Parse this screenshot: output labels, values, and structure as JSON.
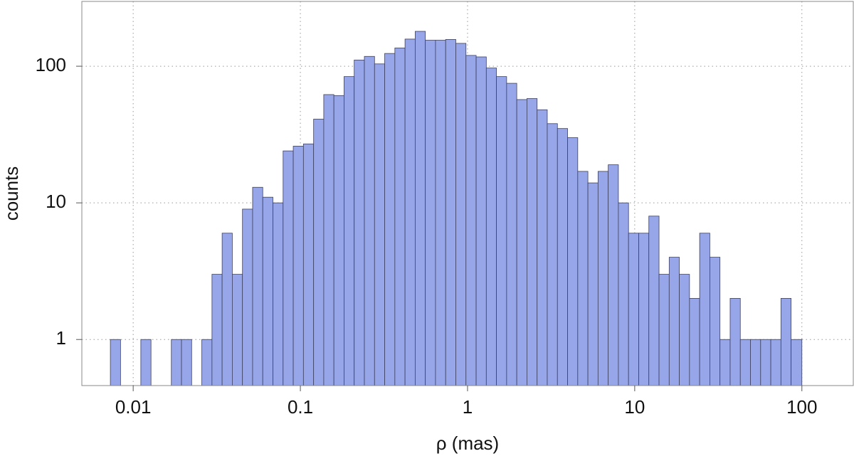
{
  "chart_data": {
    "type": "histogram",
    "xlabel": "ρ (mas)",
    "ylabel": "counts",
    "bins": [
      0.007303,
      0.0084,
      0.009662,
      0.01111,
      0.01278,
      0.0147,
      0.01691,
      0.01945,
      0.02237,
      0.02573,
      0.0296,
      0.03404,
      0.03916,
      0.04504,
      0.0518,
      0.05958,
      0.06853,
      0.07883,
      0.09067,
      0.1043,
      0.12,
      0.138,
      0.1587,
      0.1825,
      0.2099,
      0.2415,
      0.2778,
      0.3195,
      0.3675,
      0.4227,
      0.4862,
      0.5592,
      0.6432,
      0.7398,
      0.8509,
      0.9787,
      1.126,
      1.295,
      1.489,
      1.713,
      1.97,
      2.266,
      2.607,
      2.998,
      3.449,
      3.967,
      4.563,
      5.248,
      6.036,
      6.943,
      7.986,
      9.185,
      10.57,
      12.15,
      13.98,
      16.08,
      18.49,
      21.27,
      24.46,
      28.14,
      32.36,
      37.23,
      42.82,
      49.25,
      56.65,
      65.15,
      74.94,
      86.2,
      100
    ],
    "values": [
      1,
      0,
      0,
      1,
      0,
      0,
      1,
      1,
      0,
      1,
      3,
      6,
      3,
      9,
      13,
      11,
      10,
      24,
      26,
      27,
      41,
      62,
      61,
      84,
      111,
      118,
      104,
      124,
      136,
      158,
      180,
      155,
      155,
      157,
      147,
      120,
      117,
      97,
      84,
      75,
      57,
      58,
      48,
      38,
      35,
      30,
      17,
      14,
      17,
      19,
      10,
      6,
      6,
      8,
      3,
      4,
      3,
      2,
      6,
      4,
      1,
      2,
      1,
      1,
      1,
      1,
      2,
      1
    ],
    "color": "#97a6e8",
    "edgecolor": "#3d4160",
    "xscale": "log",
    "yscale": "log",
    "xlim": [
      0.00493,
      203
    ],
    "ylim": [
      0.46,
      298
    ],
    "xticks": [
      0.01,
      0.1,
      1,
      10,
      100
    ],
    "yticks": [
      1,
      10,
      100
    ],
    "grid": true
  }
}
